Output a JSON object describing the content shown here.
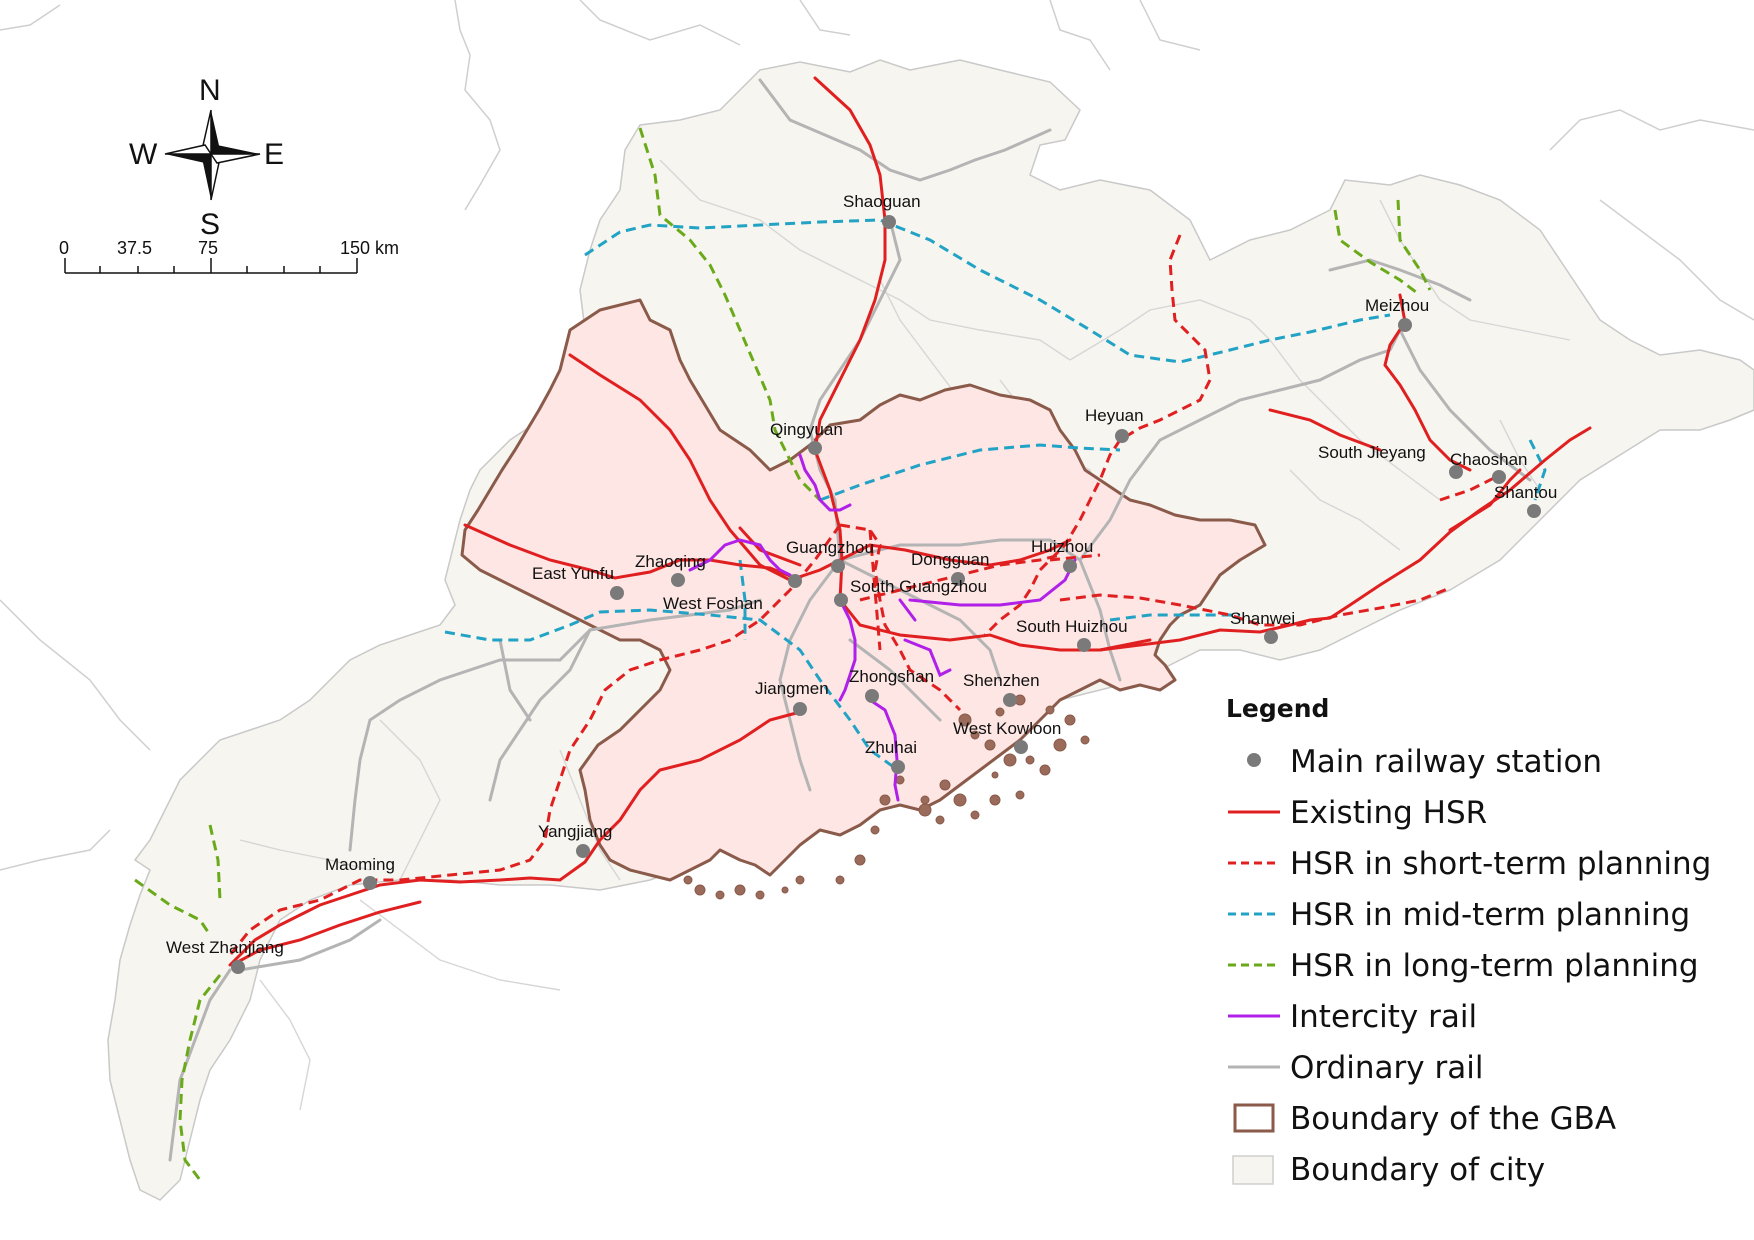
{
  "compass": {
    "north": "N",
    "south": "S",
    "east": "E",
    "west": "W"
  },
  "scale_bar": {
    "ticks": [
      "0",
      "37.5",
      "75",
      "150 km"
    ]
  },
  "stations": [
    {
      "name": "Shaoguan"
    },
    {
      "name": "Qingyuan"
    },
    {
      "name": "Meizhou"
    },
    {
      "name": "Heyuan"
    },
    {
      "name": "South Jieyang"
    },
    {
      "name": "Chaoshan"
    },
    {
      "name": "Shantou"
    },
    {
      "name": "Guangzhou"
    },
    {
      "name": "Dongguan"
    },
    {
      "name": "Huizhou"
    },
    {
      "name": "East Yunfu"
    },
    {
      "name": "Zhaoqing"
    },
    {
      "name": "West Foshan"
    },
    {
      "name": "South Guangzhou"
    },
    {
      "name": "South Huizhou"
    },
    {
      "name": "Shanwei"
    },
    {
      "name": "Zhongshan"
    },
    {
      "name": "Shenzhen"
    },
    {
      "name": "Jiangmen"
    },
    {
      "name": "West Kowloon"
    },
    {
      "name": "Zhuhai"
    },
    {
      "name": "Yangjiang"
    },
    {
      "name": "Maoming"
    },
    {
      "name": "West Zhanjiang"
    }
  ],
  "legend": {
    "title": "Legend",
    "items": [
      {
        "label": "Main railway station",
        "color": "#7a7a7a"
      },
      {
        "label": "Existing HSR",
        "color": "#e02020"
      },
      {
        "label": "HSR in short-term planning",
        "color": "#e02020"
      },
      {
        "label": "HSR in mid-term planning",
        "color": "#22a3c6"
      },
      {
        "label": "HSR in long-term planning",
        "color": "#6aaa1a"
      },
      {
        "label": "Intercity rail",
        "color": "#b020e8"
      },
      {
        "label": "Ordinary rail",
        "color": "#b4b4b4"
      },
      {
        "label": "Boundary of the GBA",
        "color": "#8a5a4a"
      },
      {
        "label": "Boundary of city",
        "color": "#f7f5ef"
      }
    ]
  },
  "colors": {
    "land": "#f7f5ef",
    "gba_fill": "#fde6e3",
    "gba_border": "#8a5a4a",
    "neighbor_border": "#cfcfcf",
    "city_border": "#d4d4d4"
  }
}
